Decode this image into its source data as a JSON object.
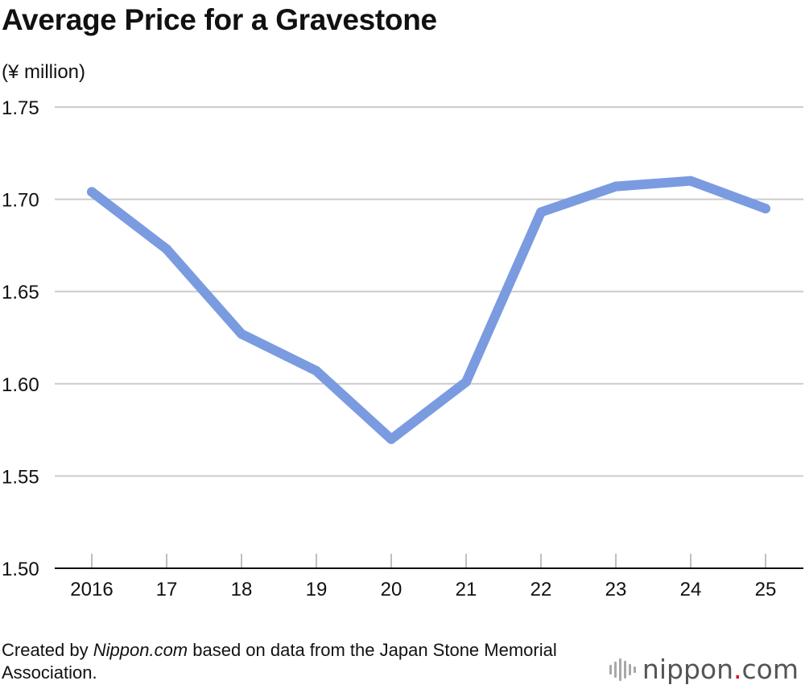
{
  "chart_data": {
    "type": "line",
    "title": "Average Price for a Gravestone",
    "ylabel": "(¥ million)",
    "xlabel": "",
    "categories": [
      "2016",
      "17",
      "18",
      "19",
      "20",
      "21",
      "22",
      "23",
      "24",
      "25"
    ],
    "series": [
      {
        "name": "Average price",
        "values": [
          1.704,
          1.673,
          1.627,
          1.607,
          1.57,
          1.601,
          1.693,
          1.707,
          1.71,
          1.695
        ],
        "color": "#7b9be0"
      }
    ],
    "ylim": [
      1.5,
      1.75
    ],
    "yticks": [
      "1.50",
      "1.55",
      "1.60",
      "1.65",
      "1.70",
      "1.75"
    ],
    "grid": true,
    "legend": "none"
  },
  "footer": {
    "prefix": "Created by ",
    "site": "Nippon.com",
    "suffix": " based on data from the Japan Stone Memorial Association."
  },
  "logo": {
    "name": "nippon",
    "dot": ".",
    "tld": "com",
    "icon": "sound-wave-icon",
    "dot_color": "#e60012"
  }
}
